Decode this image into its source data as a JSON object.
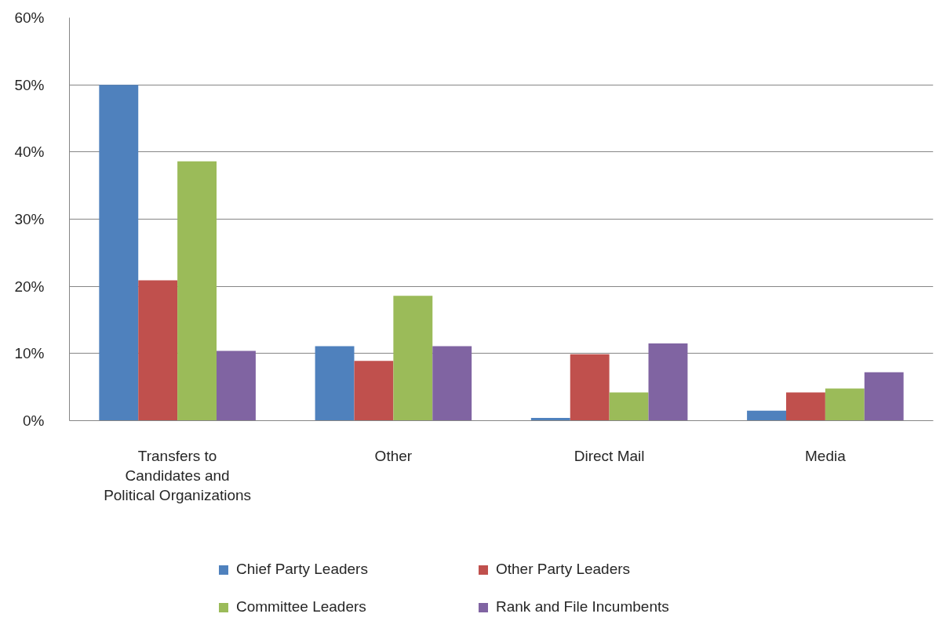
{
  "chart_data": {
    "type": "bar",
    "categories": [
      "Transfers to Candidates and Political Organizations",
      "Other",
      "Direct Mail",
      "Media"
    ],
    "series": [
      {
        "name": "Chief Party Leaders",
        "color": "#4f81bd",
        "values": [
          50.0,
          11.1,
          0.4,
          1.5
        ]
      },
      {
        "name": "Other Party Leaders",
        "color": "#c0504d",
        "values": [
          20.9,
          8.9,
          9.9,
          4.2
        ]
      },
      {
        "name": "Committee Leaders",
        "color": "#9bbb59",
        "values": [
          38.6,
          18.6,
          4.2,
          4.8
        ]
      },
      {
        "name": "Rank and File Incumbents",
        "color": "#8064a2",
        "values": [
          10.4,
          11.1,
          11.5,
          7.2
        ]
      }
    ],
    "ylim": [
      0,
      60
    ],
    "yticks": [
      {
        "value": 0,
        "label": "0%"
      },
      {
        "value": 10,
        "label": "10%"
      },
      {
        "value": 20,
        "label": "20%"
      },
      {
        "value": 30,
        "label": "30%"
      },
      {
        "value": 40,
        "label": "40%"
      },
      {
        "value": 50,
        "label": "50%"
      },
      {
        "value": 60,
        "label": "60%"
      }
    ],
    "grid": "y",
    "legend": "bottom"
  }
}
